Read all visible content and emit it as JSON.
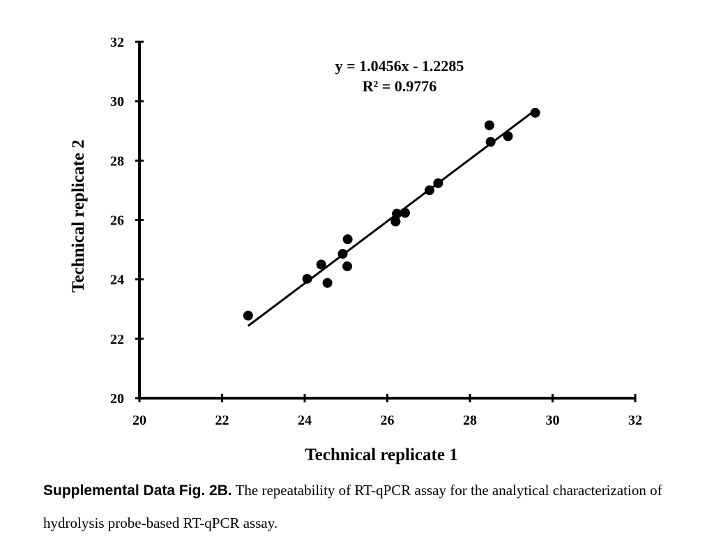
{
  "chart_data": {
    "type": "scatter",
    "xlabel": "Technical replicate 1",
    "ylabel": "Technical replicate 2",
    "xlim": [
      20,
      32
    ],
    "ylim": [
      20,
      32
    ],
    "xticks": [
      20,
      22,
      24,
      26,
      28,
      30,
      32
    ],
    "yticks": [
      20,
      22,
      24,
      26,
      28,
      30,
      32
    ],
    "grid": false,
    "points": [
      {
        "x": 22.63,
        "y": 22.78
      },
      {
        "x": 24.06,
        "y": 24.02
      },
      {
        "x": 24.4,
        "y": 24.5
      },
      {
        "x": 24.55,
        "y": 23.88
      },
      {
        "x": 24.92,
        "y": 24.86
      },
      {
        "x": 25.04,
        "y": 25.35
      },
      {
        "x": 25.03,
        "y": 24.44
      },
      {
        "x": 26.2,
        "y": 25.95
      },
      {
        "x": 26.23,
        "y": 26.21
      },
      {
        "x": 26.43,
        "y": 26.24
      },
      {
        "x": 27.02,
        "y": 27.0
      },
      {
        "x": 27.23,
        "y": 27.24
      },
      {
        "x": 28.47,
        "y": 29.19
      },
      {
        "x": 28.5,
        "y": 28.63
      },
      {
        "x": 28.92,
        "y": 28.82
      },
      {
        "x": 29.58,
        "y": 29.61
      }
    ],
    "trendline": {
      "slope": 1.0456,
      "intercept": -1.2285,
      "x_range": [
        22.63,
        29.58
      ]
    },
    "equation": "y = 1.0456x - 1.2285",
    "r_squared": "R² = 0.9776",
    "colors": {
      "marker": "#000000",
      "line": "#000000",
      "axis": "#000000"
    }
  },
  "caption": {
    "label": "Supplemental Data Fig. 2B.",
    "text": " The repeatability of RT-qPCR assay for the analytical characterization of hydrolysis probe-based RT-qPCR assay."
  }
}
